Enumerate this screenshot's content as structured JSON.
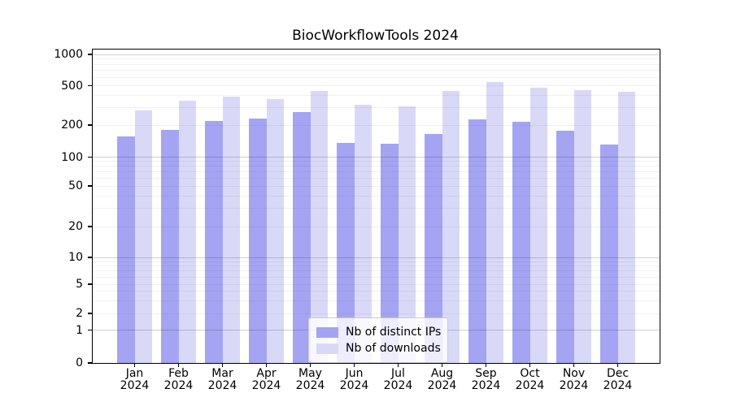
{
  "title": "BiocWorkflowTools 2024",
  "chart_data": {
    "type": "bar",
    "title": "BiocWorkflowTools 2024",
    "categories": [
      "Jan 2024",
      "Feb 2024",
      "Mar 2024",
      "Apr 2024",
      "May 2024",
      "Jun 2024",
      "Jul 2024",
      "Aug 2024",
      "Sep 2024",
      "Oct 2024",
      "Nov 2024",
      "Dec 2024"
    ],
    "series": [
      {
        "name": "Nb of distinct IPs",
        "color": "#a4a4f3",
        "values": [
          156,
          181,
          218,
          234,
          270,
          135,
          133,
          165,
          227,
          215,
          176,
          131
        ]
      },
      {
        "name": "Nb of downloads",
        "color": "#d9d9f7",
        "values": [
          281,
          354,
          388,
          366,
          444,
          318,
          307,
          441,
          543,
          480,
          447,
          438
        ]
      }
    ],
    "y_ticks": [
      0,
      1,
      2,
      5,
      10,
      20,
      50,
      100,
      200,
      500,
      1000
    ],
    "ylim": [
      0,
      1000
    ],
    "y_scale": "log-like",
    "grid": true,
    "legend_position": "lower-center-inside",
    "grid_minor_color": "#ececec",
    "grid_decade_color": "#cfcfcf",
    "axis_color": "#000000"
  }
}
